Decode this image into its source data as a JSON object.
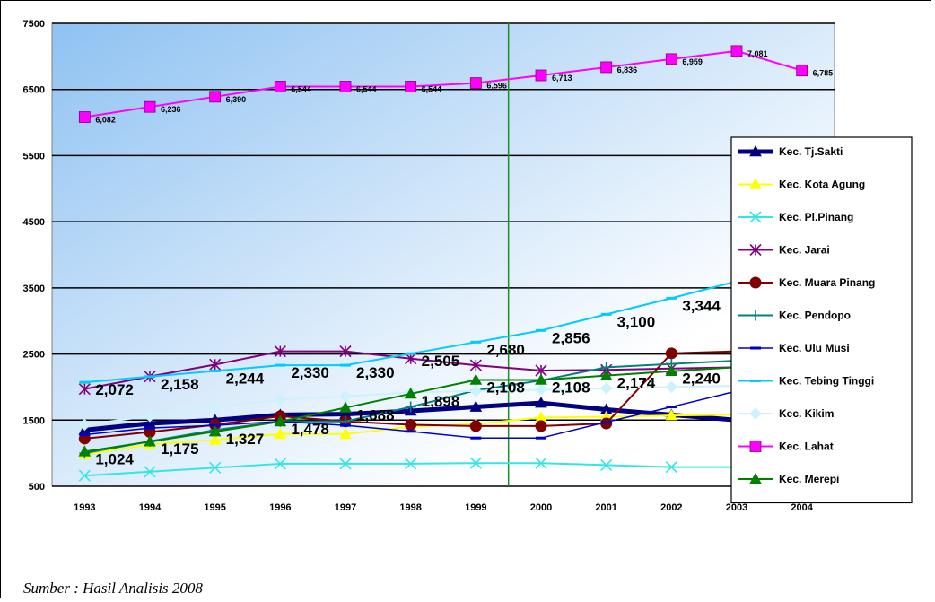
{
  "chart_data": {
    "type": "line",
    "title": "",
    "xlabel": "",
    "ylabel": "",
    "ylim": [
      500,
      7500
    ],
    "yticks": [
      500,
      1500,
      2500,
      3500,
      4500,
      5500,
      6500,
      7500
    ],
    "categories": [
      "1993",
      "1994",
      "1995",
      "1996",
      "1997",
      "1998",
      "1999",
      "2000",
      "2001",
      "2002",
      "2003",
      "2004"
    ],
    "grid": "horizontal",
    "reference_line": {
      "after_category": "1999",
      "color": "#1e8c28"
    },
    "legend_position": "right",
    "background": {
      "from": "#8fc2f2",
      "to": "#ffffff"
    },
    "series": [
      {
        "name": "Kec. Tj.Sakti",
        "color": "#000080",
        "marker": "triangle",
        "width": 5,
        "values": [
          1350,
          1450,
          1500,
          1580,
          1590,
          1640,
          1700,
          1760,
          1660,
          1580,
          1500,
          null
        ]
      },
      {
        "name": "Kec. Kota Agung",
        "color": "#ffff00",
        "marker": "triangle",
        "width": 2,
        "values": [
          980,
          1130,
          1200,
          1290,
          1290,
          1400,
          1440,
          1540,
          1550,
          1570,
          1580,
          null
        ]
      },
      {
        "name": "Kec. Pl.Pinang",
        "color": "#33e6e6",
        "marker": "x",
        "width": 2,
        "values": [
          660,
          720,
          780,
          840,
          840,
          840,
          850,
          850,
          820,
          790,
          790,
          null
        ]
      },
      {
        "name": "Kec. Jarai",
        "color": "#800080",
        "marker": "asterisk",
        "width": 2,
        "values": [
          1970,
          2160,
          2340,
          2540,
          2540,
          2430,
          2330,
          2250,
          2260,
          2280,
          2300,
          null
        ]
      },
      {
        "name": "Kec. Muara Pinang",
        "color": "#800000",
        "marker": "circle",
        "width": 2,
        "values": [
          1220,
          1320,
          1430,
          1560,
          1480,
          1430,
          1410,
          1410,
          1450,
          2510,
          2540,
          null
        ]
      },
      {
        "name": "Kec. Pendopo",
        "color": "#008080",
        "marker": "plus",
        "width": 2,
        "values": [
          1000,
          1180,
          1350,
          1480,
          1480,
          1700,
          1950,
          2100,
          2300,
          2350,
          2400,
          null
        ]
      },
      {
        "name": "Kec. Ulu Musi",
        "color": "#0000cc",
        "marker": "dash",
        "width": 1.5,
        "values": [
          1280,
          1380,
          1420,
          1480,
          1420,
          1330,
          1230,
          1230,
          1470,
          1700,
          1940,
          null
        ]
      },
      {
        "name": "Kec. Tebing Tinggi",
        "color": "#00ccff",
        "marker": "dash",
        "width": 2,
        "values": [
          2072,
          2158,
          2244,
          2330,
          2330,
          2505,
          2680,
          2856,
          3100,
          3344,
          3600,
          null
        ]
      },
      {
        "name": "Kec. Kikim",
        "color": "#ccf2ff",
        "marker": "diamond",
        "width": 2,
        "values": [
          1430,
          1560,
          1700,
          1810,
          1860,
          1920,
          1940,
          1960,
          1980,
          2000,
          2020,
          null
        ]
      },
      {
        "name": "Kec. Lahat",
        "color": "#ff00ff",
        "marker": "square",
        "width": 2,
        "values": [
          6082,
          6236,
          6390,
          6544,
          6544,
          6544,
          6596,
          6713,
          6836,
          6959,
          7081,
          6785
        ]
      },
      {
        "name": "Kec. Merepi",
        "color": "#008000",
        "marker": "triangle",
        "width": 2,
        "values": [
          1024,
          1175,
          1327,
          1478,
          1688,
          1898,
          2108,
          2108,
          2174,
          2240,
          2300,
          null
        ]
      }
    ],
    "data_labels": [
      {
        "series": "Kec. Lahat",
        "size": "small",
        "offset": [
          12,
          6
        ],
        "texts": [
          "6,082",
          "6,236",
          "6,390",
          "6,544",
          "6,544",
          "6,544",
          "6,596",
          "6,713",
          "6,836",
          "6,959",
          "7,081",
          "6,785"
        ]
      },
      {
        "series": "Kec. Tebing Tinggi",
        "size": "large",
        "offset": [
          12,
          14
        ],
        "texts": [
          "2,072",
          "2,158",
          "2,244",
          "2,330",
          "2,330",
          "2,505",
          "2,680",
          "2,856",
          "3,100",
          "3,344",
          null,
          null
        ]
      },
      {
        "series": "Kec. Merepi",
        "size": "large",
        "offset": [
          12,
          14
        ],
        "texts": [
          "1,024",
          "1,175",
          "1,327",
          "1,478",
          "1,688",
          "1,898",
          "2,108",
          "2,108",
          "2,174",
          "2,240",
          null,
          null
        ]
      }
    ]
  },
  "source_note": "Sumber : Hasil Analisis 2008"
}
